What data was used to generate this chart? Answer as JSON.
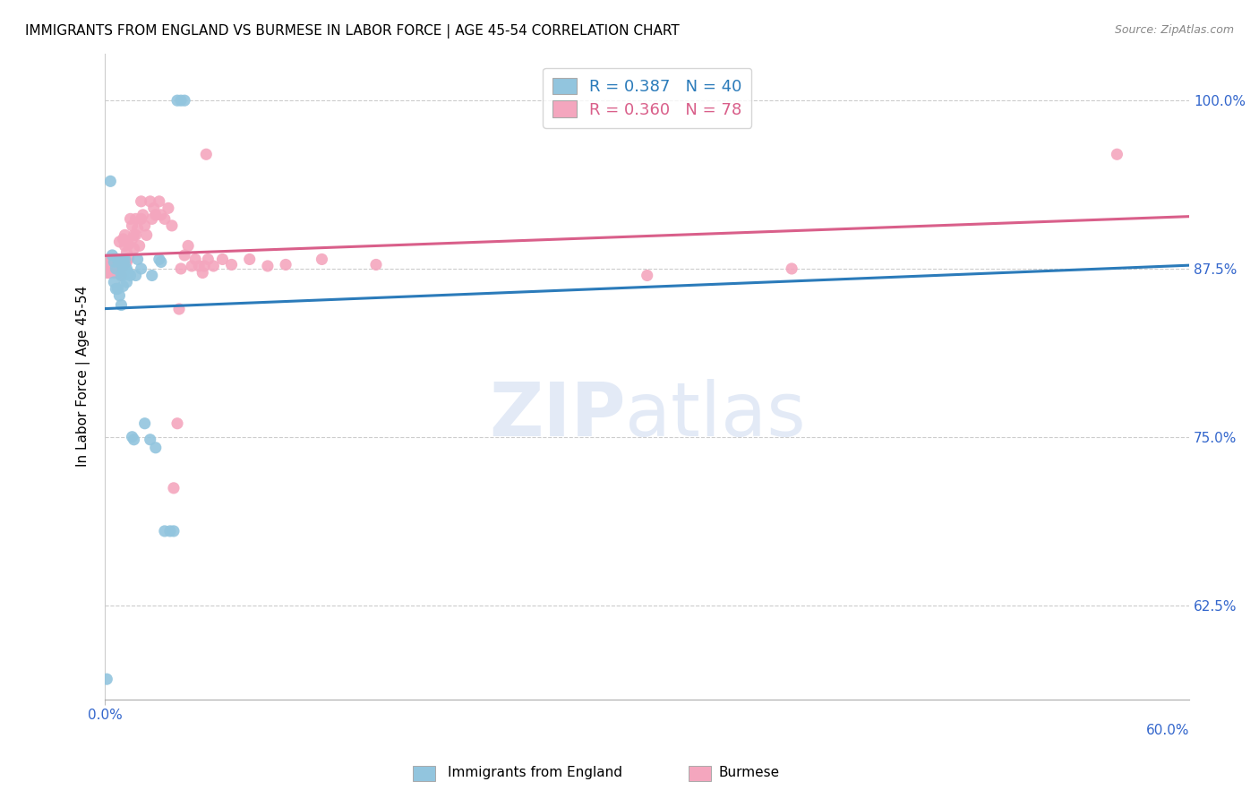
{
  "title": "IMMIGRANTS FROM ENGLAND VS BURMESE IN LABOR FORCE | AGE 45-54 CORRELATION CHART",
  "source": "Source: ZipAtlas.com",
  "ylabel": "In Labor Force | Age 45-54",
  "ytick_labels": [
    "100.0%",
    "87.5%",
    "75.0%",
    "62.5%"
  ],
  "ytick_values": [
    1.0,
    0.875,
    0.75,
    0.625
  ],
  "xlim": [
    0.0,
    0.6
  ],
  "ylim": [
    0.555,
    1.035
  ],
  "legend_blue_r": "0.387",
  "legend_blue_n": "40",
  "legend_pink_r": "0.360",
  "legend_pink_n": "78",
  "blue_color": "#92c5de",
  "pink_color": "#f4a6be",
  "blue_line_color": "#2b7bba",
  "pink_line_color": "#d95f8a",
  "blue_x": [
    0.001,
    0.003,
    0.004,
    0.005,
    0.005,
    0.006,
    0.006,
    0.007,
    0.007,
    0.008,
    0.008,
    0.009,
    0.009,
    0.01,
    0.01,
    0.01,
    0.01,
    0.011,
    0.011,
    0.012,
    0.012,
    0.013,
    0.014,
    0.015,
    0.016,
    0.017,
    0.018,
    0.02,
    0.022,
    0.025,
    0.026,
    0.028,
    0.03,
    0.031,
    0.033,
    0.036,
    0.038,
    0.04,
    0.042,
    0.044
  ],
  "blue_y": [
    0.57,
    0.94,
    0.885,
    0.88,
    0.865,
    0.875,
    0.86,
    0.882,
    0.86,
    0.88,
    0.855,
    0.87,
    0.848,
    0.882,
    0.875,
    0.87,
    0.862,
    0.882,
    0.878,
    0.875,
    0.865,
    0.872,
    0.87,
    0.75,
    0.748,
    0.87,
    0.882,
    0.875,
    0.76,
    0.748,
    0.87,
    0.742,
    0.882,
    0.88,
    0.68,
    0.68,
    0.68,
    1.0,
    1.0,
    1.0
  ],
  "pink_x": [
    0.001,
    0.001,
    0.002,
    0.002,
    0.003,
    0.003,
    0.003,
    0.004,
    0.004,
    0.005,
    0.005,
    0.005,
    0.006,
    0.006,
    0.007,
    0.007,
    0.008,
    0.008,
    0.008,
    0.009,
    0.009,
    0.009,
    0.01,
    0.01,
    0.01,
    0.011,
    0.011,
    0.012,
    0.012,
    0.013,
    0.013,
    0.014,
    0.015,
    0.015,
    0.016,
    0.016,
    0.017,
    0.017,
    0.018,
    0.019,
    0.02,
    0.02,
    0.021,
    0.022,
    0.023,
    0.025,
    0.026,
    0.027,
    0.028,
    0.03,
    0.031,
    0.033,
    0.035,
    0.037,
    0.038,
    0.04,
    0.041,
    0.042,
    0.044,
    0.046,
    0.048,
    0.05,
    0.052,
    0.054,
    0.055,
    0.056,
    0.057,
    0.06,
    0.065,
    0.07,
    0.08,
    0.09,
    0.1,
    0.12,
    0.15,
    0.3,
    0.38,
    0.56
  ],
  "pink_y": [
    0.876,
    0.872,
    0.882,
    0.872,
    0.882,
    0.877,
    0.872,
    0.882,
    0.877,
    0.882,
    0.877,
    0.872,
    0.882,
    0.877,
    0.882,
    0.872,
    0.895,
    0.882,
    0.877,
    0.882,
    0.877,
    0.87,
    0.897,
    0.882,
    0.877,
    0.9,
    0.892,
    0.887,
    0.88,
    0.893,
    0.883,
    0.912,
    0.907,
    0.897,
    0.9,
    0.89,
    0.912,
    0.9,
    0.905,
    0.892,
    0.925,
    0.912,
    0.915,
    0.907,
    0.9,
    0.925,
    0.912,
    0.92,
    0.915,
    0.925,
    0.915,
    0.912,
    0.92,
    0.907,
    0.712,
    0.76,
    0.845,
    0.875,
    0.885,
    0.892,
    0.877,
    0.882,
    0.877,
    0.872,
    0.877,
    0.96,
    0.882,
    0.877,
    0.882,
    0.878,
    0.882,
    0.877,
    0.878,
    0.882,
    0.878,
    0.87,
    0.875,
    0.96
  ]
}
